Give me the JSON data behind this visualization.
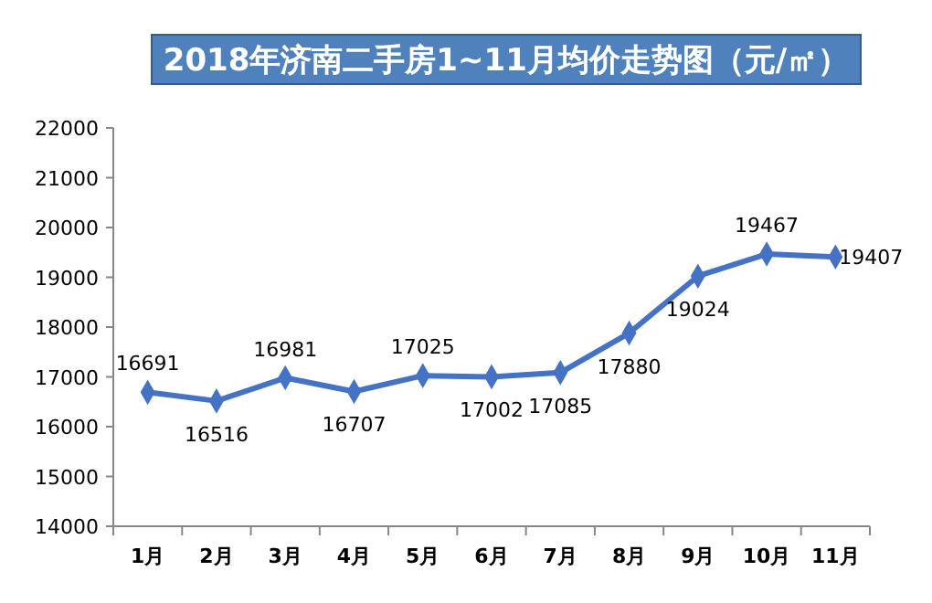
{
  "chart_data": {
    "type": "line",
    "title": "2018年济南二手房1~11月均价走势图（元/㎡）",
    "categories": [
      "1月",
      "2月",
      "3月",
      "4月",
      "5月",
      "6月",
      "7月",
      "8月",
      "9月",
      "10月",
      "11月"
    ],
    "series": [
      {
        "color": "#4472c4",
        "values": [
          16691,
          16516,
          16981,
          16707,
          17025,
          17002,
          17085,
          17880,
          19024,
          19467,
          19407
        ]
      }
    ],
    "ylim": [
      14000,
      22000
    ],
    "yticks": [
      14000,
      15000,
      16000,
      17000,
      18000,
      19000,
      20000,
      21000,
      22000
    ],
    "grid": false,
    "marker": "diamond",
    "line_style": "solid",
    "data_labels": true
  }
}
